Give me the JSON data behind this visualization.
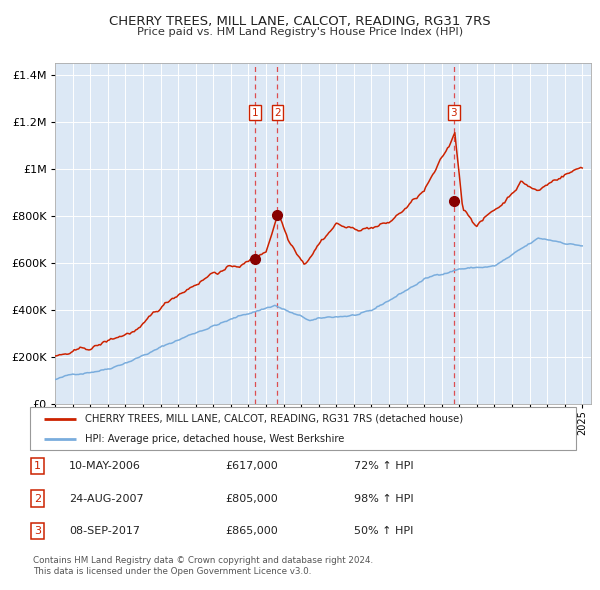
{
  "title": "CHERRY TREES, MILL LANE, CALCOT, READING, RG31 7RS",
  "subtitle": "Price paid vs. HM Land Registry's House Price Index (HPI)",
  "legend_line1": "CHERRY TREES, MILL LANE, CALCOT, READING, RG31 7RS (detached house)",
  "legend_line2": "HPI: Average price, detached house, West Berkshire",
  "footer1": "Contains HM Land Registry data © Crown copyright and database right 2024.",
  "footer2": "This data is licensed under the Open Government Licence v3.0.",
  "sales": [
    {
      "num": 1,
      "date": "10-MAY-2006",
      "price": 617000,
      "pct": "72%",
      "dir": "↑",
      "x_year": 2006.37
    },
    {
      "num": 2,
      "date": "24-AUG-2007",
      "price": 805000,
      "pct": "98%",
      "dir": "↑",
      "x_year": 2007.65
    },
    {
      "num": 3,
      "date": "08-SEP-2017",
      "price": 865000,
      "pct": "50%",
      "dir": "↑",
      "x_year": 2017.69
    }
  ],
  "hpi_color": "#7aaddd",
  "price_color": "#cc2200",
  "sale_dot_color": "#880000",
  "dashed_line_color": "#dd3333",
  "background_plot": "#dce8f5",
  "background_fig": "#ffffff",
  "grid_color": "#ffffff",
  "ylim": [
    0,
    1450000
  ],
  "xlim_start": 1995.0,
  "xlim_end": 2025.5,
  "yticks": [
    0,
    200000,
    400000,
    600000,
    800000,
    1000000,
    1200000,
    1400000
  ]
}
